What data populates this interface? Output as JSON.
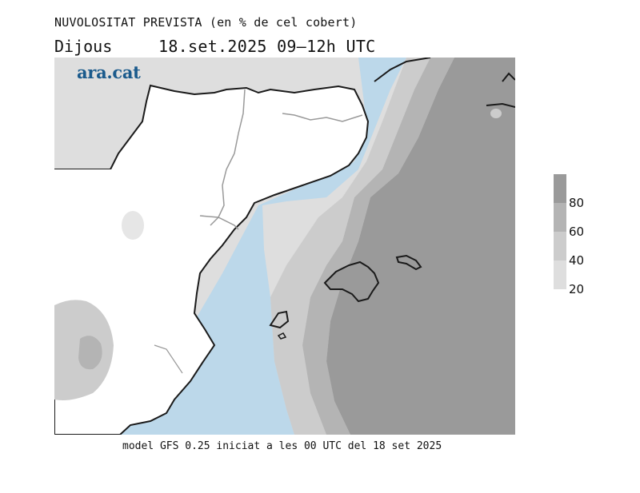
{
  "header": {
    "title": "NUVOLOSITAT PREVISTA (en % de cel cobert)",
    "day": "Dijous",
    "datetime": "18.set.2025 09–12h UTC"
  },
  "logo": {
    "text": "ara.cat"
  },
  "footer": {
    "text": "model GFS 0.25 iniciat a les 00 UTC del 18 set 2025"
  },
  "legend": {
    "levels": [
      {
        "label": "80",
        "color": "#9a9a9a"
      },
      {
        "label": "60",
        "color": "#b4b4b4"
      },
      {
        "label": "40",
        "color": "#cccccc"
      },
      {
        "label": "20",
        "color": "#dedede"
      }
    ]
  },
  "colors": {
    "sea": "#bcd8ea",
    "land": "#ffffff",
    "cloud_20": "#dedede",
    "cloud_40": "#cccccc",
    "cloud_60": "#b4b4b4",
    "cloud_80": "#9a9a9a",
    "coastline": "#1a1a1a",
    "border": "#999999"
  }
}
